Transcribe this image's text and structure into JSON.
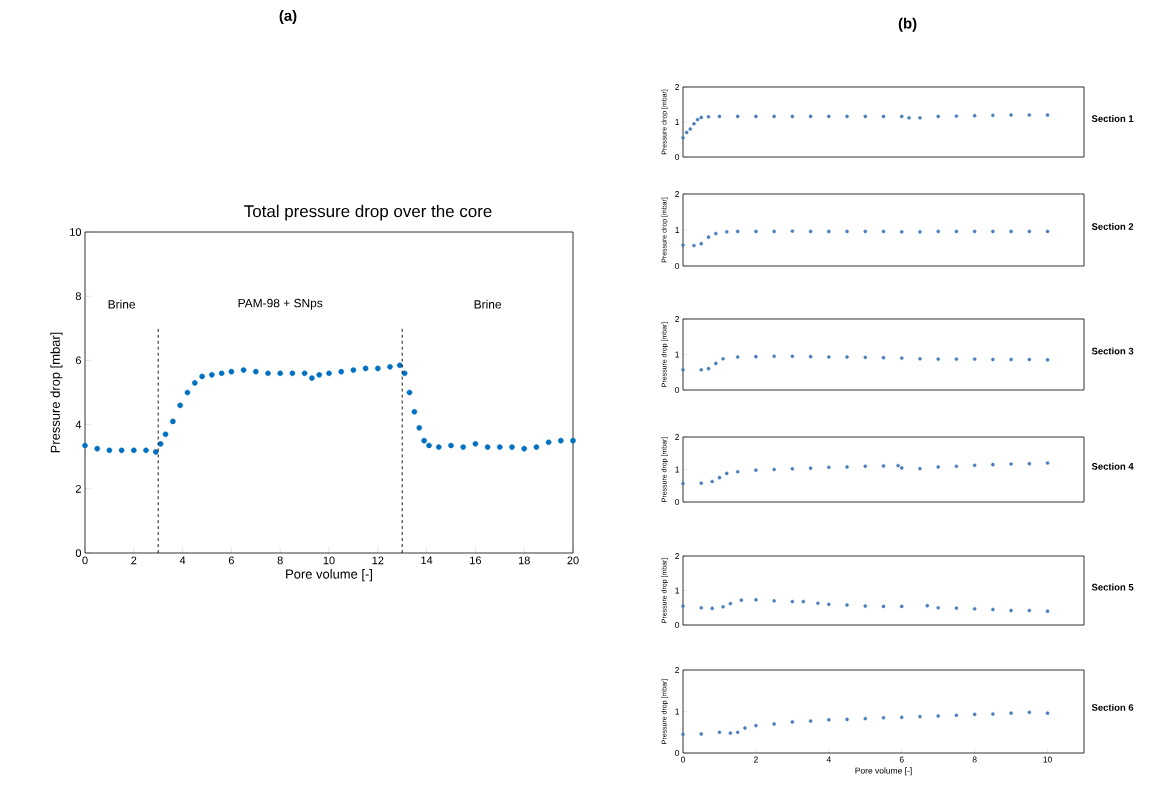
{
  "chart_data": [
    {
      "type": "scatter",
      "title": "Total pressure drop over the core",
      "xlabel": "Pore volume [-]",
      "ylabel": "Pressure drop [mbar]",
      "marker": "circle",
      "color": "#0070c0",
      "annotations": [
        "(a)",
        "Brine",
        "PAM-98 + SNps",
        "Brine"
      ],
      "ref_lines": [
        {
          "axis": "x",
          "value": 3,
          "line_style": "dashed",
          "color": "#000000"
        },
        {
          "axis": "x",
          "value": 13,
          "line_style": "dashed",
          "color": "#000000"
        }
      ],
      "x": [
        0,
        0.5,
        1,
        1.5,
        2,
        2.5,
        2.9,
        3.1,
        3.3,
        3.6,
        3.9,
        4.2,
        4.5,
        4.8,
        5.2,
        5.6,
        6,
        6.5,
        7,
        7.5,
        8,
        8.5,
        9,
        9.3,
        9.6,
        10,
        10.5,
        11,
        11.5,
        12,
        12.5,
        12.9,
        13.1,
        13.3,
        13.5,
        13.7,
        13.9,
        14.1,
        14.5,
        15,
        15.5,
        16,
        16.5,
        17,
        17.5,
        18,
        18.5,
        19,
        19.5,
        20
      ],
      "values": [
        3.35,
        3.25,
        3.2,
        3.2,
        3.2,
        3.2,
        3.15,
        3.4,
        3.7,
        4.1,
        4.6,
        5.0,
        5.3,
        5.5,
        5.55,
        5.6,
        5.65,
        5.7,
        5.65,
        5.6,
        5.6,
        5.6,
        5.6,
        5.45,
        5.55,
        5.6,
        5.65,
        5.7,
        5.75,
        5.75,
        5.8,
        5.85,
        5.6,
        5.0,
        4.4,
        3.9,
        3.5,
        3.35,
        3.3,
        3.35,
        3.3,
        3.4,
        3.3,
        3.3,
        3.3,
        3.25,
        3.3,
        3.45,
        3.5,
        3.5
      ],
      "xlim": [
        0,
        20
      ],
      "xticks": [
        0,
        2,
        4,
        6,
        8,
        10,
        12,
        14,
        16,
        18,
        20
      ],
      "ylim": [
        0,
        10
      ],
      "yticks": [
        0,
        2,
        4,
        6,
        8,
        10
      ]
    },
    {
      "type": "scatter",
      "annotations": [
        "Section 1",
        "(b)"
      ],
      "ylabel": "Pressure drop [mbar]",
      "marker": "circle",
      "color": "#4a7ebb",
      "tick_labels": "y",
      "x": [
        0,
        0.1,
        0.2,
        0.3,
        0.4,
        0.5,
        0.7,
        1,
        1.5,
        2,
        2.5,
        3,
        3.5,
        4,
        4.5,
        5,
        5.5,
        6,
        6.2,
        6.5,
        7,
        7.5,
        8,
        8.5,
        9,
        9.5,
        10
      ],
      "values": [
        0.55,
        0.7,
        0.8,
        0.95,
        1.07,
        1.13,
        1.15,
        1.16,
        1.16,
        1.16,
        1.16,
        1.16,
        1.16,
        1.16,
        1.16,
        1.16,
        1.16,
        1.16,
        1.12,
        1.12,
        1.16,
        1.17,
        1.18,
        1.19,
        1.2,
        1.2,
        1.2
      ],
      "xlim": [
        0,
        11
      ],
      "ylim": [
        0,
        2
      ],
      "yticks": [
        0,
        1,
        2
      ]
    },
    {
      "type": "scatter",
      "annotations": [
        "Section 2"
      ],
      "ylabel": "Pressure drop [mbar]",
      "marker": "circle",
      "color": "#4a7ebb",
      "tick_labels": "y",
      "x": [
        0,
        0.3,
        0.5,
        0.7,
        0.9,
        1.2,
        1.5,
        2,
        2.5,
        3,
        3.5,
        4,
        4.5,
        5,
        5.5,
        6,
        6.5,
        7,
        7.5,
        8,
        8.5,
        9,
        9.5,
        10
      ],
      "values": [
        0.58,
        0.57,
        0.62,
        0.8,
        0.9,
        0.95,
        0.96,
        0.96,
        0.96,
        0.97,
        0.96,
        0.96,
        0.96,
        0.96,
        0.96,
        0.95,
        0.95,
        0.96,
        0.96,
        0.96,
        0.96,
        0.96,
        0.96,
        0.96
      ],
      "xlim": [
        0,
        11
      ],
      "ylim": [
        0,
        2
      ],
      "yticks": [
        0,
        1,
        2
      ]
    },
    {
      "type": "scatter",
      "annotations": [
        "Section 3"
      ],
      "ylabel": "Pressure drop [mbar]",
      "marker": "circle",
      "color": "#4a7ebb",
      "tick_labels": "y",
      "x": [
        0,
        0.5,
        0.7,
        0.9,
        1.1,
        1.5,
        2,
        2.5,
        3,
        3.5,
        4,
        4.5,
        5,
        5.5,
        6,
        6.5,
        7,
        7.5,
        8,
        8.5,
        9,
        9.5,
        10
      ],
      "values": [
        0.57,
        0.57,
        0.6,
        0.75,
        0.88,
        0.93,
        0.94,
        0.95,
        0.95,
        0.94,
        0.93,
        0.93,
        0.92,
        0.91,
        0.9,
        0.88,
        0.87,
        0.87,
        0.87,
        0.86,
        0.86,
        0.86,
        0.85
      ],
      "xlim": [
        0,
        11
      ],
      "ylim": [
        0,
        2
      ],
      "yticks": [
        0,
        1,
        2
      ]
    },
    {
      "type": "scatter",
      "annotations": [
        "Section 4"
      ],
      "ylabel": "Pressure drop [mbar]",
      "marker": "circle",
      "color": "#4a7ebb",
      "tick_labels": "y",
      "x": [
        0,
        0.5,
        0.8,
        1,
        1.2,
        1.5,
        2,
        2.5,
        3,
        3.5,
        4,
        4.5,
        5,
        5.5,
        5.9,
        6,
        6.5,
        7,
        7.5,
        8,
        8.5,
        9,
        9.5,
        10
      ],
      "values": [
        0.57,
        0.58,
        0.63,
        0.75,
        0.88,
        0.93,
        0.98,
        1.0,
        1.02,
        1.04,
        1.07,
        1.08,
        1.1,
        1.11,
        1.12,
        1.05,
        1.03,
        1.08,
        1.1,
        1.13,
        1.15,
        1.17,
        1.18,
        1.2
      ],
      "xlim": [
        0,
        11
      ],
      "ylim": [
        0,
        2
      ],
      "yticks": [
        0,
        1,
        2
      ]
    },
    {
      "type": "scatter",
      "annotations": [
        "Section 5"
      ],
      "ylabel": "Pressure drop [mbar]",
      "marker": "circle",
      "color": "#4a7ebb",
      "tick_labels": "y",
      "x": [
        0,
        0.5,
        0.8,
        1.1,
        1.3,
        1.6,
        2,
        2.5,
        3,
        3.3,
        3.7,
        4,
        4.5,
        5,
        5.5,
        6,
        6.7,
        7,
        7.5,
        8,
        8.5,
        9,
        9.5,
        10
      ],
      "values": [
        0.55,
        0.5,
        0.48,
        0.53,
        0.62,
        0.72,
        0.73,
        0.7,
        0.68,
        0.68,
        0.63,
        0.6,
        0.58,
        0.55,
        0.54,
        0.54,
        0.56,
        0.5,
        0.49,
        0.47,
        0.45,
        0.42,
        0.42,
        0.4
      ],
      "xlim": [
        0,
        11
      ],
      "ylim": [
        0,
        2
      ],
      "yticks": [
        0,
        1,
        2
      ]
    },
    {
      "type": "scatter",
      "annotations": [
        "Section 6"
      ],
      "xlabel": "Pore volume [-]",
      "ylabel": "Pressure drop [mbar]",
      "marker": "circle",
      "color": "#4a7ebb",
      "x": [
        0,
        0.5,
        1,
        1.3,
        1.5,
        1.7,
        2,
        2.5,
        3,
        3.5,
        4,
        4.5,
        5,
        5.5,
        6,
        6.5,
        7,
        7.5,
        8,
        8.5,
        9,
        9.5,
        10
      ],
      "values": [
        0.45,
        0.46,
        0.5,
        0.48,
        0.5,
        0.6,
        0.66,
        0.7,
        0.75,
        0.77,
        0.8,
        0.81,
        0.83,
        0.85,
        0.86,
        0.88,
        0.89,
        0.91,
        0.93,
        0.94,
        0.96,
        0.98,
        0.96
      ],
      "xlim": [
        0,
        11
      ],
      "xticks": [
        0,
        2,
        4,
        6,
        8,
        10
      ],
      "ylim": [
        0,
        2
      ],
      "yticks": [
        0,
        1,
        2
      ]
    }
  ]
}
